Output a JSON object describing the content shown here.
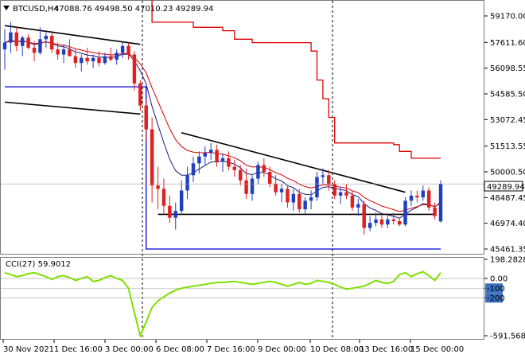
{
  "header": {
    "symbol": "BTCUSD,H4",
    "ohlc": "47088.76 49498.50 47010.23 49289.94",
    "arrow_icon": "triangle-down-icon"
  },
  "cci_header": {
    "label": "CCI(27) 59.9012"
  },
  "current_price_label": "49289.94",
  "colors": {
    "bull": "#1f3fbf",
    "bear": "#e02020",
    "upper_envelope": "#e00000",
    "lower_envelope": "#0000e0",
    "ema_fast": "#1a1a80",
    "ema_slow": "#d00000",
    "trendline": "#000000",
    "cci_line": "#7ee000",
    "price_tag_bg": "#ffffff",
    "cci_level_tag_bg": "#3b6fc0"
  },
  "chart_data": {
    "type": "candlestick",
    "price_axis": {
      "range": [
        45461.35,
        59170.0
      ],
      "ticks": [
        "59170.00",
        "57611.60",
        "56098.55",
        "54585.50",
        "53072.45",
        "51513.55",
        "50000.50",
        "48487.45",
        "46974.40",
        "45461.35"
      ]
    },
    "x_axis": {
      "ticks": [
        "30 Nov 2021",
        "1 Dec 16:00",
        "3 Dec 00:00",
        "6 Dec 08:00",
        "7 Dec 16:00",
        "9 Dec 00:00",
        "10 Dec 08:00",
        "13 Dec 16:00",
        "15 Dec 00:00"
      ]
    },
    "candles": [
      [
        57200,
        58400,
        56000,
        57600
      ],
      [
        57600,
        58800,
        57000,
        58200
      ],
      [
        58200,
        58500,
        57100,
        57400
      ],
      [
        57400,
        58000,
        56800,
        57900
      ],
      [
        57900,
        58100,
        57200,
        57300
      ],
      [
        57300,
        57700,
        56500,
        57000
      ],
      [
        57000,
        58500,
        56900,
        57800
      ],
      [
        57800,
        58200,
        57300,
        58000
      ],
      [
        58000,
        58300,
        57000,
        57200
      ],
      [
        57200,
        57600,
        56600,
        56900
      ],
      [
        56900,
        57500,
        56400,
        57200
      ],
      [
        57200,
        57800,
        56800,
        56800
      ],
      [
        56800,
        57200,
        56100,
        56400
      ],
      [
        56400,
        56900,
        55900,
        56700
      ],
      [
        56700,
        57300,
        56300,
        56500
      ],
      [
        56500,
        56900,
        56100,
        56700
      ],
      [
        56700,
        57100,
        56200,
        56400
      ],
      [
        56400,
        57000,
        56300,
        56800
      ],
      [
        56800,
        57300,
        56500,
        56600
      ],
      [
        56600,
        57200,
        56300,
        57000
      ],
      [
        57000,
        57600,
        56700,
        57400
      ],
      [
        57400,
        57600,
        56600,
        56900
      ],
      [
        56900,
        57100,
        54800,
        55200
      ],
      [
        55200,
        55400,
        53600,
        53900
      ],
      [
        53900,
        54300,
        51800,
        52500
      ],
      [
        52500,
        53200,
        48200,
        49200
      ],
      [
        49200,
        50300,
        47800,
        49000
      ],
      [
        49000,
        49600,
        47500,
        48000
      ],
      [
        48000,
        48600,
        47000,
        47300
      ],
      [
        47300,
        48200,
        46600,
        47700
      ],
      [
        47700,
        49500,
        47500,
        48900
      ],
      [
        48900,
        50300,
        48400,
        49800
      ],
      [
        49800,
        50900,
        49400,
        50500
      ],
      [
        50500,
        51200,
        49900,
        50900
      ],
      [
        50900,
        51500,
        50400,
        51100
      ],
      [
        51100,
        51700,
        50700,
        51300
      ],
      [
        51300,
        51600,
        50300,
        50600
      ],
      [
        50600,
        51100,
        50000,
        50800
      ],
      [
        50800,
        51200,
        50100,
        50300
      ],
      [
        50300,
        50700,
        49700,
        50100
      ],
      [
        50100,
        50400,
        49200,
        49500
      ],
      [
        49500,
        50200,
        48400,
        48700
      ],
      [
        48700,
        49800,
        48300,
        49600
      ],
      [
        49600,
        50600,
        49300,
        50400
      ],
      [
        50400,
        50800,
        49700,
        50000
      ],
      [
        50000,
        50300,
        49100,
        49300
      ],
      [
        49300,
        49800,
        48600,
        48800
      ],
      [
        48800,
        49300,
        48200,
        49000
      ],
      [
        49000,
        49200,
        47900,
        48200
      ],
      [
        48200,
        49000,
        47700,
        48700
      ],
      [
        48700,
        49000,
        47600,
        47800
      ],
      [
        47800,
        48500,
        47500,
        48300
      ],
      [
        48300,
        48900,
        47800,
        48500
      ],
      [
        48500,
        50000,
        48300,
        49700
      ],
      [
        49700,
        50200,
        49300,
        49800
      ],
      [
        49800,
        50100,
        48900,
        49300
      ],
      [
        49300,
        49500,
        48400,
        48600
      ],
      [
        48600,
        49100,
        48100,
        48800
      ],
      [
        48800,
        49300,
        48400,
        48600
      ],
      [
        48600,
        48900,
        47700,
        47900
      ],
      [
        47900,
        48400,
        47400,
        48100
      ],
      [
        48100,
        48300,
        46300,
        46700
      ],
      [
        46700,
        47400,
        46500,
        47000
      ],
      [
        47000,
        47600,
        46800,
        47200
      ],
      [
        47200,
        47500,
        46700,
        46900
      ],
      [
        46900,
        47400,
        46700,
        47200
      ],
      [
        47200,
        47600,
        46900,
        47100
      ],
      [
        47100,
        47300,
        46800,
        46900
      ],
      [
        46900,
        48500,
        46800,
        48300
      ],
      [
        48300,
        48900,
        48000,
        48600
      ],
      [
        48600,
        48900,
        48200,
        48500
      ],
      [
        48500,
        49200,
        48300,
        48900
      ],
      [
        48900,
        49100,
        47700,
        47900
      ],
      [
        47900,
        48200,
        47200,
        47400
      ],
      [
        47088.76,
        49498.5,
        47010.23,
        49289.94
      ]
    ],
    "cci": {
      "name": "CCI(27)",
      "range": [
        -591.5682,
        198.2828
      ],
      "ticks": [
        "198.2828",
        "0.00",
        "-100",
        "-200",
        "-591.5682"
      ],
      "values": [
        60,
        40,
        20,
        30,
        50,
        60,
        40,
        20,
        -10,
        20,
        30,
        10,
        -20,
        0,
        20,
        -30,
        -20,
        10,
        30,
        0,
        -20,
        -100,
        -350,
        -591.5682,
        -450,
        -300,
        -230,
        -190,
        -150,
        -120,
        -100,
        -90,
        -80,
        -70,
        -60,
        -50,
        -40,
        -40,
        -35,
        -30,
        -40,
        -50,
        -60,
        -50,
        -40,
        -30,
        -40,
        -60,
        -80,
        -60,
        -40,
        -60,
        -50,
        -20,
        -30,
        -40,
        -60,
        -90,
        -110,
        -100,
        -90,
        -80,
        -50,
        -20,
        -40,
        -50,
        -30,
        40,
        60,
        20,
        50,
        70,
        30,
        -20,
        59.9012
      ]
    }
  }
}
